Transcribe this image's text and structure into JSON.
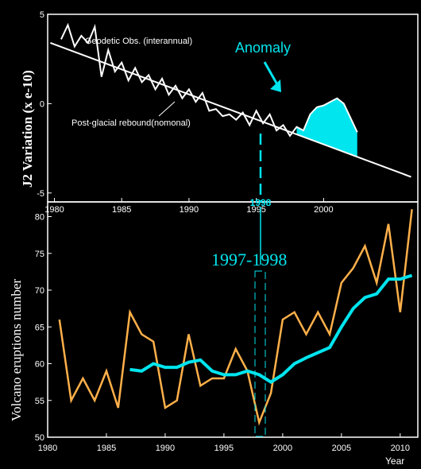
{
  "colors": {
    "background": "#000000",
    "cyan": "#00e5ee",
    "orange": "#ffb04a",
    "white": "#ffffff"
  },
  "chart_data": [
    {
      "type": "line",
      "title": "",
      "ylabel": "J2 Variation (x e-10)",
      "xlabel": "",
      "xlim": [
        1979.5,
        2007
      ],
      "ylim": [
        -5.5,
        5
      ],
      "x_ticks": [
        1980,
        1985,
        1990,
        1995,
        2000
      ],
      "highlight_tick": "1998",
      "y_ticks": [
        -5,
        0,
        5
      ],
      "series": [
        {
          "name": "Geodetic Obs. (interannual)",
          "x": [
            1980.5,
            1981.0,
            1981.5,
            1982.0,
            1982.5,
            1983.0,
            1983.5,
            1984.0,
            1984.5,
            1985.0,
            1985.5,
            1986.0,
            1986.5,
            1987.0,
            1987.5,
            1988.0,
            1988.5,
            1989.0,
            1989.5,
            1990.0,
            1990.5,
            1991.0,
            1991.5,
            1992.0,
            1992.5,
            1993.0,
            1993.5,
            1994.0,
            1994.5,
            1995.0,
            1995.5,
            1996.0,
            1996.5,
            1997.0,
            1997.5,
            1998.0,
            1998.5,
            1999.0,
            1999.5,
            2000.0,
            2000.5,
            2001.0,
            2001.5,
            2002.0,
            2002.5
          ],
          "y": [
            3.6,
            4.4,
            3.2,
            3.8,
            3.4,
            4.3,
            1.5,
            3.0,
            1.8,
            2.3,
            1.3,
            2.0,
            1.2,
            1.6,
            0.8,
            1.4,
            0.5,
            1.0,
            0.3,
            0.8,
            0.1,
            0.6,
            -0.4,
            -0.3,
            -0.7,
            -0.6,
            -0.9,
            -0.5,
            -1.2,
            -0.4,
            -1.1,
            -0.6,
            -1.5,
            -1.2,
            -1.8,
            -1.3,
            -1.5,
            -0.6,
            -0.2,
            -0.1,
            0.1,
            0.3,
            0.0,
            -0.8,
            -1.6
          ]
        },
        {
          "name": "Post-glacial rebound(nomonal)",
          "x": [
            1979.7,
            2006.5
          ],
          "y": [
            3.4,
            -4.1
          ]
        }
      ],
      "annotations": [
        "Anomaly",
        "1998"
      ]
    },
    {
      "type": "line",
      "title": "",
      "xlabel": "Year",
      "ylabel": "Volcano eruptions number",
      "xlim": [
        1980,
        2011.5
      ],
      "ylim": [
        50,
        82
      ],
      "x_ticks": [
        1980,
        1985,
        1990,
        1995,
        2000,
        2005,
        2010
      ],
      "y_ticks": [
        50,
        55,
        60,
        65,
        70,
        75,
        80
      ],
      "highlight_label": "1997-1998",
      "series": [
        {
          "name": "",
          "color": "#ffb04a",
          "x": [
            1981,
            1982,
            1983,
            1984,
            1985,
            1986,
            1987,
            1988,
            1989,
            1990,
            1991,
            1992,
            1993,
            1994,
            1995,
            1996,
            1997,
            1998,
            1999,
            2000,
            2001,
            2002,
            2003,
            2004,
            2005,
            2006,
            2007,
            2008,
            2009,
            2010,
            2011
          ],
          "y": [
            66,
            55,
            58,
            55,
            59,
            54,
            67,
            64,
            63,
            54,
            55,
            64,
            57,
            58,
            58,
            62,
            59,
            52,
            56,
            66,
            67,
            64,
            67,
            64,
            71,
            73,
            76,
            71,
            79,
            67,
            81
          ]
        },
        {
          "name": "",
          "color": "#00e5ee",
          "x": [
            1987,
            1988,
            1989,
            1990,
            1991,
            1992,
            1993,
            1994,
            1995,
            1996,
            1997,
            1998,
            1999,
            2000,
            2001,
            2002,
            2003,
            2004,
            2005,
            2006,
            2007,
            2008,
            2009,
            2010,
            2011
          ],
          "y": [
            59.2,
            59.0,
            60.0,
            59.5,
            59.5,
            60.2,
            60.5,
            59.0,
            58.5,
            58.5,
            59.0,
            58.5,
            57.5,
            58.5,
            60.0,
            60.8,
            61.5,
            62.2,
            65.0,
            67.5,
            69.0,
            69.5,
            71.5,
            71.5,
            72.0
          ]
        }
      ]
    }
  ]
}
